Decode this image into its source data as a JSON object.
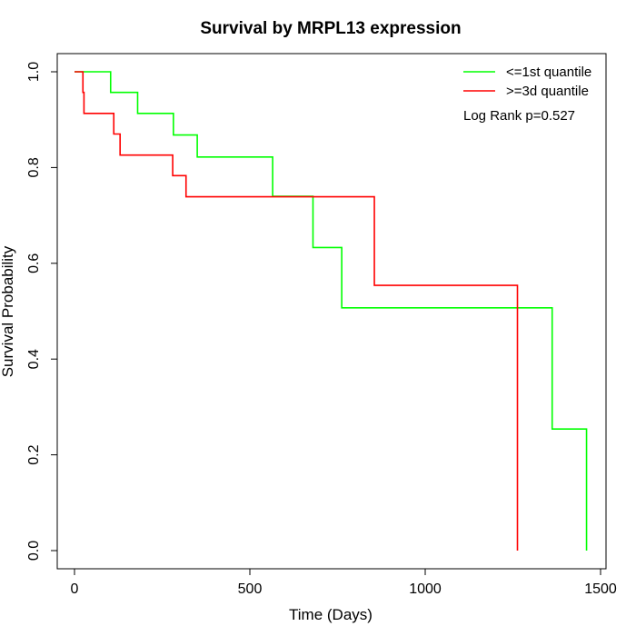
{
  "chart_data": {
    "type": "line",
    "subtype": "kaplan-meier-step",
    "title": "Survival by MRPL13 expression",
    "xlabel": "Time (Days)",
    "ylabel": "Survival Probability",
    "xlim": [
      0,
      1500
    ],
    "ylim": [
      0,
      1
    ],
    "x_ticks": [
      0,
      500,
      1000,
      1500
    ],
    "x_tick_labels": [
      "0",
      "500",
      "1000",
      "1500"
    ],
    "y_ticks": [
      0,
      0.2,
      0.4,
      0.6,
      0.8,
      1.0
    ],
    "y_tick_labels": [
      "0.0",
      "0.2",
      "0.4",
      "0.6",
      "0.8",
      "1.0"
    ],
    "grid": false,
    "legend_position": "top-right",
    "annotation": "Log Rank p=0.527",
    "series": [
      {
        "name": "<=1st quantile",
        "color": "#00ff00",
        "x": [
          0,
          103,
          180,
          282,
          350,
          565,
          680,
          762,
          1362,
          1460,
          1460
        ],
        "y": [
          1.0,
          0.957,
          0.913,
          0.868,
          0.822,
          0.74,
          0.633,
          0.507,
          0.254,
          0.254,
          0.0
        ]
      },
      {
        "name": ">=3d quantile",
        "color": "#ff0000",
        "x": [
          0,
          24,
          27,
          112,
          130,
          280,
          318,
          855,
          1263,
          1263
        ],
        "y": [
          1.0,
          0.957,
          0.913,
          0.87,
          0.826,
          0.783,
          0.739,
          0.554,
          0.554,
          0.0
        ]
      }
    ]
  }
}
